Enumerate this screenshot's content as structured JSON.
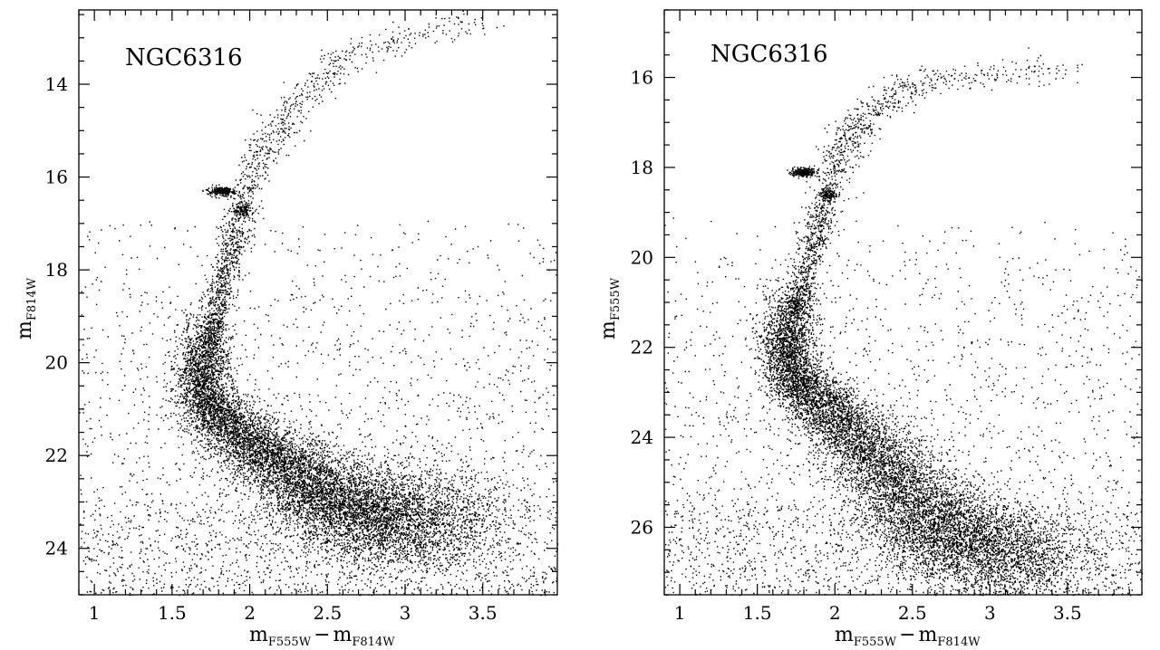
{
  "chart_data": [
    {
      "type": "scatter",
      "title": "NGC6316",
      "xlabel": "m_F555W − m_F814W",
      "ylabel": "m_F814W",
      "x_main": "m",
      "x_sub1": "F555W",
      "x_minus": "−",
      "x_sub2": "F814W",
      "y_main": "m",
      "y_sub": "F814W",
      "xlim": [
        0.9,
        3.98
      ],
      "ylim": [
        25.0,
        12.4
      ],
      "y_inverted": true,
      "x_ticks": [
        "1",
        "1.5",
        "2",
        "2.5",
        "3",
        "3.5"
      ],
      "y_ticks": [
        "14",
        "16",
        "18",
        "20",
        "22",
        "24"
      ],
      "grid": false,
      "color": "#000000",
      "features": {
        "main_sequence_turnoff": {
          "color": 1.7,
          "mag": 20.2
        },
        "main_sequence_lower": [
          [
            1.7,
            20.8
          ],
          [
            2.0,
            21.7
          ],
          [
            2.3,
            22.4
          ],
          [
            2.6,
            23.1
          ],
          [
            2.9,
            23.4
          ],
          [
            3.3,
            23.3
          ]
        ],
        "red_giant_branch": [
          [
            1.75,
            19.5
          ],
          [
            1.85,
            18.0
          ],
          [
            1.92,
            17.0
          ],
          [
            2.05,
            15.6
          ],
          [
            2.25,
            14.6
          ],
          [
            2.6,
            13.4
          ],
          [
            3.5,
            12.6
          ]
        ],
        "red_clump": {
          "color": 1.82,
          "mag": 16.3
        },
        "rgb_bump": {
          "color": 1.95,
          "mag": 16.7
        }
      }
    },
    {
      "type": "scatter",
      "title": "NGC6316",
      "xlabel": "m_F555W − m_F814W",
      "ylabel": "m_F555W",
      "x_main": "m",
      "x_sub1": "F555W",
      "x_minus": "−",
      "x_sub2": "F814W",
      "y_main": "m",
      "y_sub": "F555W",
      "xlim": [
        0.9,
        3.98
      ],
      "ylim": [
        27.5,
        14.5
      ],
      "y_inverted": true,
      "x_ticks": [
        "1",
        "1.5",
        "2",
        "2.5",
        "3",
        "3.5"
      ],
      "y_ticks": [
        "16",
        "18",
        "20",
        "22",
        "24",
        "26"
      ],
      "grid": false,
      "color": "#000000",
      "features": {
        "main_sequence_turnoff": {
          "color": 1.7,
          "mag": 21.9
        },
        "main_sequence_lower": [
          [
            1.7,
            22.5
          ],
          [
            2.0,
            23.5
          ],
          [
            2.3,
            24.6
          ],
          [
            2.6,
            25.8
          ],
          [
            2.9,
            26.5
          ],
          [
            3.3,
            26.8
          ]
        ],
        "red_giant_branch": [
          [
            1.75,
            21.2
          ],
          [
            1.85,
            19.8
          ],
          [
            1.92,
            18.9
          ],
          [
            2.05,
            17.5
          ],
          [
            2.25,
            16.7
          ],
          [
            2.6,
            16.0
          ],
          [
            3.5,
            15.8
          ]
        ],
        "red_clump": {
          "color": 1.8,
          "mag": 18.1
        },
        "rgb_bump": {
          "color": 1.95,
          "mag": 18.6
        }
      }
    }
  ]
}
